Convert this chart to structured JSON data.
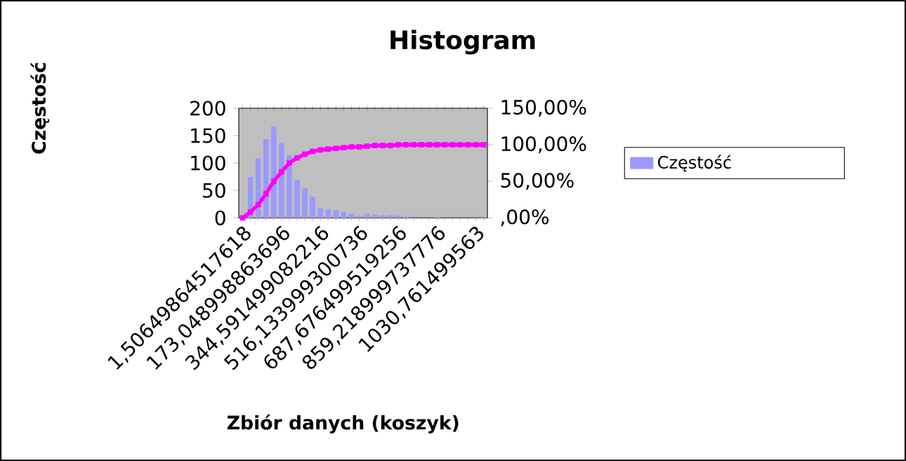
{
  "chart_data": {
    "type": "bar",
    "title": "Histogram",
    "xlabel": "Zbiór danych (koszyk)",
    "ylabel": "Częstość",
    "categories": [
      "1,50649864517618",
      null,
      null,
      null,
      null,
      "173,048998863696",
      null,
      null,
      null,
      null,
      "344,591499082216",
      null,
      null,
      null,
      null,
      "516,133999300736",
      null,
      null,
      null,
      null,
      "687,676499519256",
      null,
      null,
      null,
      null,
      "859,218999737776",
      null,
      null,
      null,
      null,
      "1030,761499563",
      null
    ],
    "series": [
      {
        "name": "Częstość",
        "color": "#9999ff",
        "values": [
          0,
          74,
          108,
          143,
          166,
          136,
          113,
          69,
          53,
          38,
          17,
          15,
          13,
          10,
          7,
          3,
          7,
          5,
          4,
          4,
          3,
          1,
          0,
          0,
          0,
          1,
          0,
          0,
          0,
          0,
          0,
          1
        ]
      },
      {
        "type": "line",
        "axis": "y2",
        "color": "#ff00ff",
        "marker": "square",
        "values": [
          0,
          8,
          18,
          33,
          50,
          63,
          75,
          82,
          87,
          91,
          93,
          94,
          95,
          96,
          97,
          97,
          98,
          99,
          99,
          99,
          100,
          100,
          100,
          100,
          100,
          100,
          100,
          100,
          100,
          100,
          100,
          100
        ]
      }
    ],
    "ylim": [
      0,
      200
    ],
    "yticks": [
      0,
      50,
      100,
      150,
      200
    ],
    "y2lim": [
      0,
      150
    ],
    "y2ticks": [
      {
        "value": 0,
        "label": ",00%"
      },
      {
        "value": 50,
        "label": "50,00%"
      },
      {
        "value": 100,
        "label": "100,00%"
      },
      {
        "value": 150,
        "label": "150,00%"
      }
    ],
    "legend": "right"
  }
}
